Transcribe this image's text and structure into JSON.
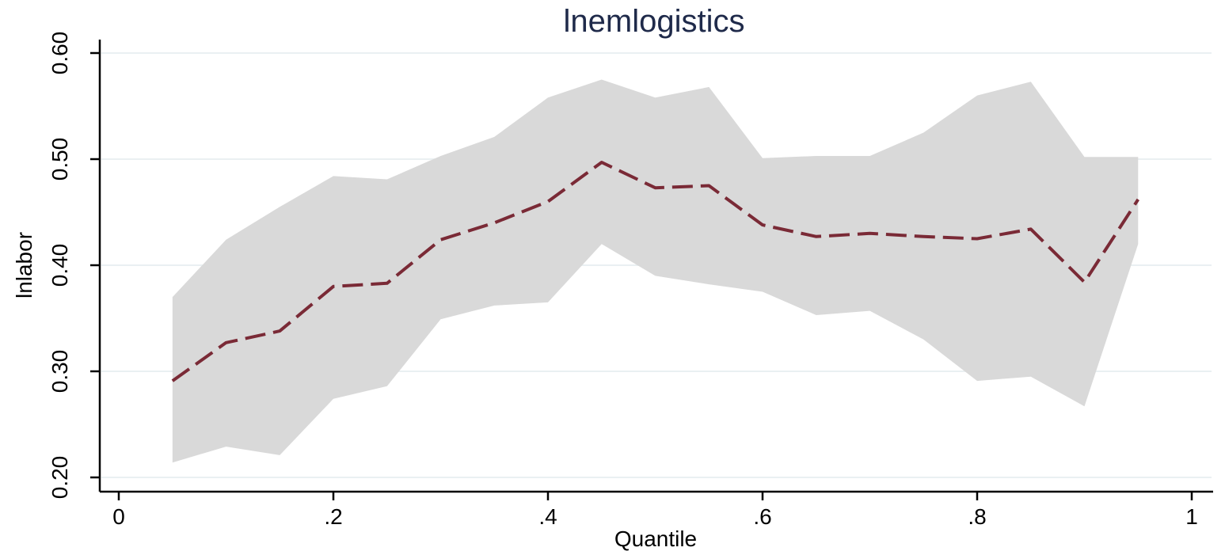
{
  "chart_data": {
    "type": "line",
    "title": "lnemlogistics",
    "xlabel": "Quantile",
    "ylabel": "lnlabor",
    "xlim": [
      0,
      1
    ],
    "ylim": [
      0.2,
      0.6
    ],
    "x_ticks": [
      {
        "value": 0,
        "label": "0"
      },
      {
        "value": 0.2,
        "label": ".2"
      },
      {
        "value": 0.4,
        "label": ".4"
      },
      {
        "value": 0.6,
        "label": ".6"
      },
      {
        "value": 0.8,
        "label": ".8"
      },
      {
        "value": 1,
        "label": "1"
      }
    ],
    "y_ticks": [
      {
        "value": 0.2,
        "label": "0.20"
      },
      {
        "value": 0.3,
        "label": "0.30"
      },
      {
        "value": 0.4,
        "label": "0.40"
      },
      {
        "value": 0.5,
        "label": "0.50"
      },
      {
        "value": 0.6,
        "label": "0.60"
      }
    ],
    "grid": true,
    "legend": "none",
    "x": [
      0.05,
      0.1,
      0.15,
      0.2,
      0.25,
      0.3,
      0.35,
      0.4,
      0.45,
      0.5,
      0.55,
      0.6,
      0.65,
      0.7,
      0.75,
      0.8,
      0.85,
      0.9,
      0.95
    ],
    "series": [
      {
        "values": [
          0.291,
          0.327,
          0.338,
          0.38,
          0.383,
          0.424,
          0.44,
          0.46,
          0.497,
          0.473,
          0.475,
          0.438,
          0.427,
          0.43,
          0.427,
          0.425,
          0.434,
          0.384,
          0.462
        ],
        "lower": [
          0.214,
          0.229,
          0.221,
          0.274,
          0.286,
          0.349,
          0.362,
          0.365,
          0.42,
          0.39,
          0.382,
          0.375,
          0.353,
          0.357,
          0.33,
          0.291,
          0.295,
          0.267,
          0.42
        ],
        "upper": [
          0.37,
          0.424,
          0.455,
          0.484,
          0.481,
          0.503,
          0.521,
          0.558,
          0.575,
          0.558,
          0.568,
          0.501,
          0.503,
          0.503,
          0.525,
          0.56,
          0.573,
          0.502,
          0.502
        ],
        "color": "#7a2a36",
        "band_color": "#d9d9d9"
      }
    ]
  }
}
